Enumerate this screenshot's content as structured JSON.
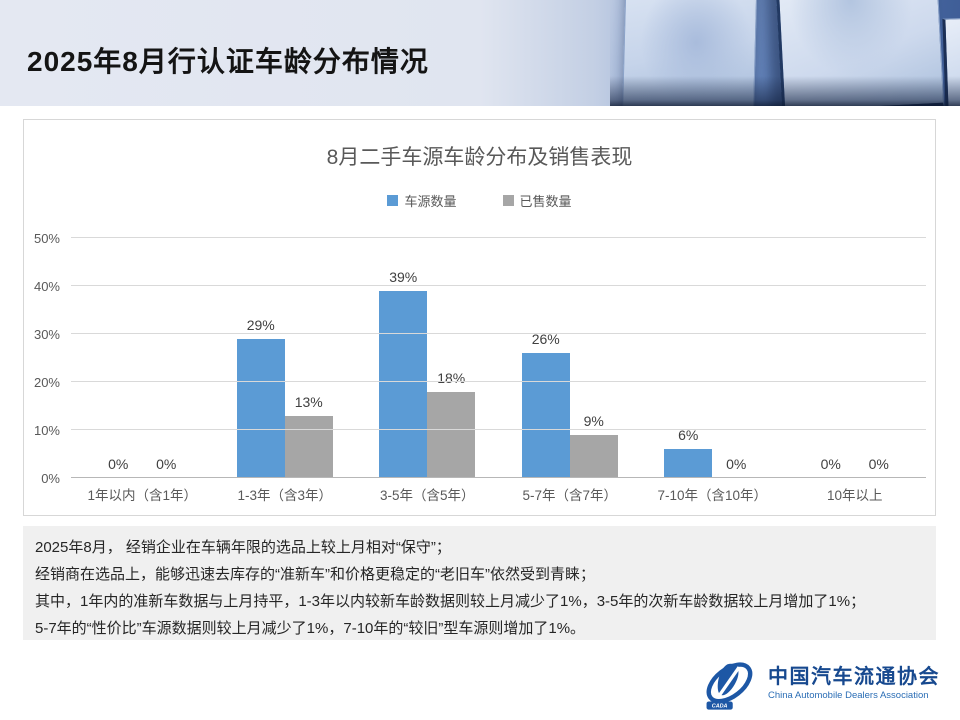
{
  "slide": {
    "title": "2025年8月行认证车龄分布情况"
  },
  "chart_data": {
    "type": "bar",
    "title": "8月二手车源车龄分布及销售表现",
    "categories": [
      "1年以内（含1年）",
      "1-3年（含3年）",
      "3-5年（含5年）",
      "5-7年（含7年）",
      "7-10年（含10年）",
      "10年以上"
    ],
    "series": [
      {
        "name": "车源数量",
        "color": "#5B9BD5",
        "values": [
          0,
          29,
          39,
          26,
          6,
          0
        ]
      },
      {
        "name": "已售数量",
        "color": "#A6A6A6",
        "values": [
          0,
          13,
          18,
          9,
          0,
          0
        ]
      }
    ],
    "value_suffix": "%",
    "yticks": [
      "0%",
      "10%",
      "20%",
      "30%",
      "40%",
      "50%"
    ],
    "ytick_step": 10,
    "ylim": [
      0,
      50
    ],
    "grid": true,
    "legend_position": "top"
  },
  "summary": {
    "lines": [
      "2025年8月， 经销企业在车辆年限的选品上较上月相对“保守”；",
      "经销商在选品上，能够迅速去库存的“准新车”和价格更稳定的“老旧车”依然受到青睐；",
      "其中，1年内的准新车数据与上月持平，1-3年以内较新车龄数据则较上月减少了1%，3-5年的次新车龄数据较上月增加了1%；",
      "5-7年的“性价比”车源数据则较上月减少了1%，7-10年的“较旧”型车源则增加了1%。"
    ]
  },
  "footer": {
    "org_name_cn": "中国汽车流通协会",
    "org_name_en": "China Automobile Dealers Association",
    "logo_badge": "CADA",
    "brand_color": "#1D57A5"
  },
  "colors": {
    "bar_blue": "#5B9BD5",
    "bar_gray": "#A6A6A6",
    "panel_border": "#D7D7D7",
    "summary_bg": "#F0F0F0",
    "header_left": "#E4E8F2",
    "header_right": "#41619F"
  }
}
